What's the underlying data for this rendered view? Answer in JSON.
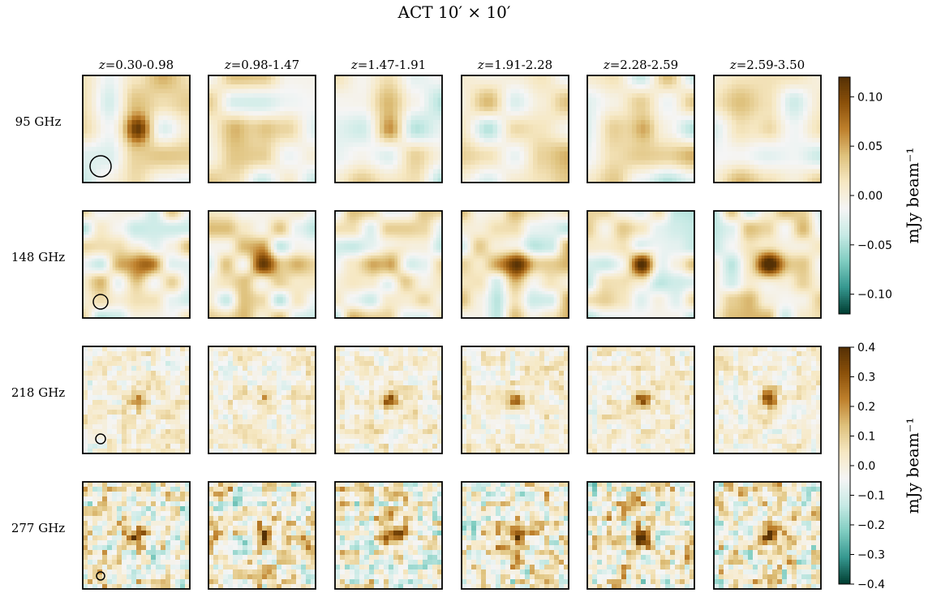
{
  "chart_data": {
    "type": "heatmap",
    "title": "ACT 10′ × 10′",
    "columns": [
      "z=0.30-0.98",
      "z=0.98-1.47",
      "z=1.47-1.91",
      "z=1.91-2.28",
      "z=2.28-2.59",
      "z=2.59-3.50"
    ],
    "rows": [
      "95 GHz",
      "148 GHz",
      "218 GHz",
      "277 GHz"
    ],
    "beam_marker": "circle",
    "colormap": {
      "name": "BrBG_r",
      "stops": [
        "#003c30",
        "#35978f",
        "#80cdc1",
        "#c7eae5",
        "#f5f5f5",
        "#f6e8c3",
        "#dfc27d",
        "#bf812d",
        "#8c510a",
        "#543005"
      ]
    },
    "colorbars": [
      {
        "label": "mJy beam⁻¹",
        "applies_to_rows": [
          "95 GHz",
          "148 GHz"
        ],
        "range": [
          -0.12,
          0.12
        ],
        "ticks": [
          0.1,
          0.05,
          0.0,
          -0.05,
          -0.1
        ],
        "tick_labels": [
          "0.10",
          "0.05",
          "0.00",
          "−0.05",
          "−0.10"
        ]
      },
      {
        "label": "mJy beam⁻¹",
        "applies_to_rows": [
          "218 GHz",
          "277 GHz"
        ],
        "range": [
          -0.4,
          0.4
        ],
        "ticks": [
          0.4,
          0.3,
          0.2,
          0.1,
          0.0,
          -0.1,
          -0.2,
          -0.3,
          -0.4
        ],
        "tick_labels": [
          "0.4",
          "0.3",
          "0.2",
          "0.1",
          "0.0",
          "−0.1",
          "−0.2",
          "−0.3",
          "−0.4"
        ]
      }
    ],
    "central_peak": [
      [
        0.085,
        0.04,
        0.045,
        0.01,
        0.06,
        0.03
      ],
      [
        0.085,
        0.07,
        0.085,
        0.09,
        0.095,
        0.1
      ],
      [
        0.2,
        0.12,
        0.27,
        0.25,
        0.3,
        0.33
      ],
      [
        0.35,
        0.32,
        0.38,
        0.4,
        0.4,
        0.4
      ]
    ]
  }
}
